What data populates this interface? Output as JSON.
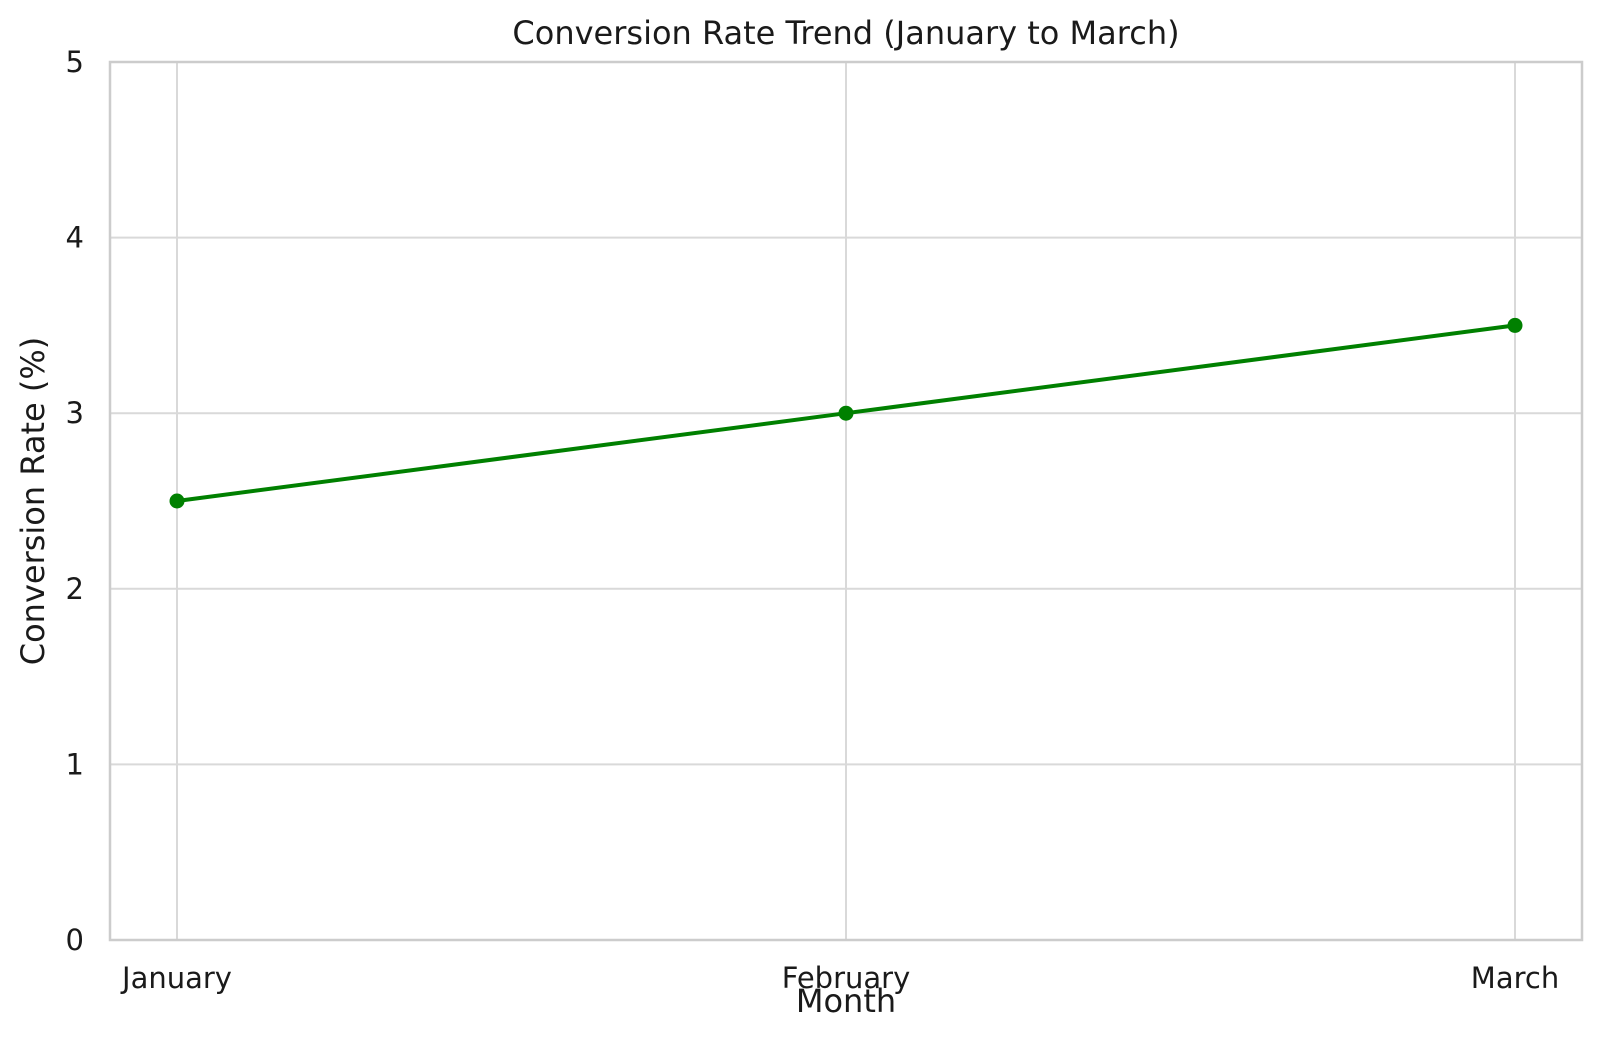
{
  "chart_data": {
    "type": "line",
    "title": "Conversion Rate Trend (January to March)",
    "xlabel": "Month",
    "ylabel": "Conversion Rate (%)",
    "categories": [
      "January",
      "February",
      "March"
    ],
    "series": [
      {
        "values": [
          2.5,
          3.0,
          3.5
        ],
        "color": "#008000",
        "marker": "circle"
      }
    ],
    "ylim": [
      0,
      5
    ],
    "yticks": [
      0,
      1,
      2,
      3,
      4,
      5
    ],
    "grid": true,
    "legend": "none"
  }
}
